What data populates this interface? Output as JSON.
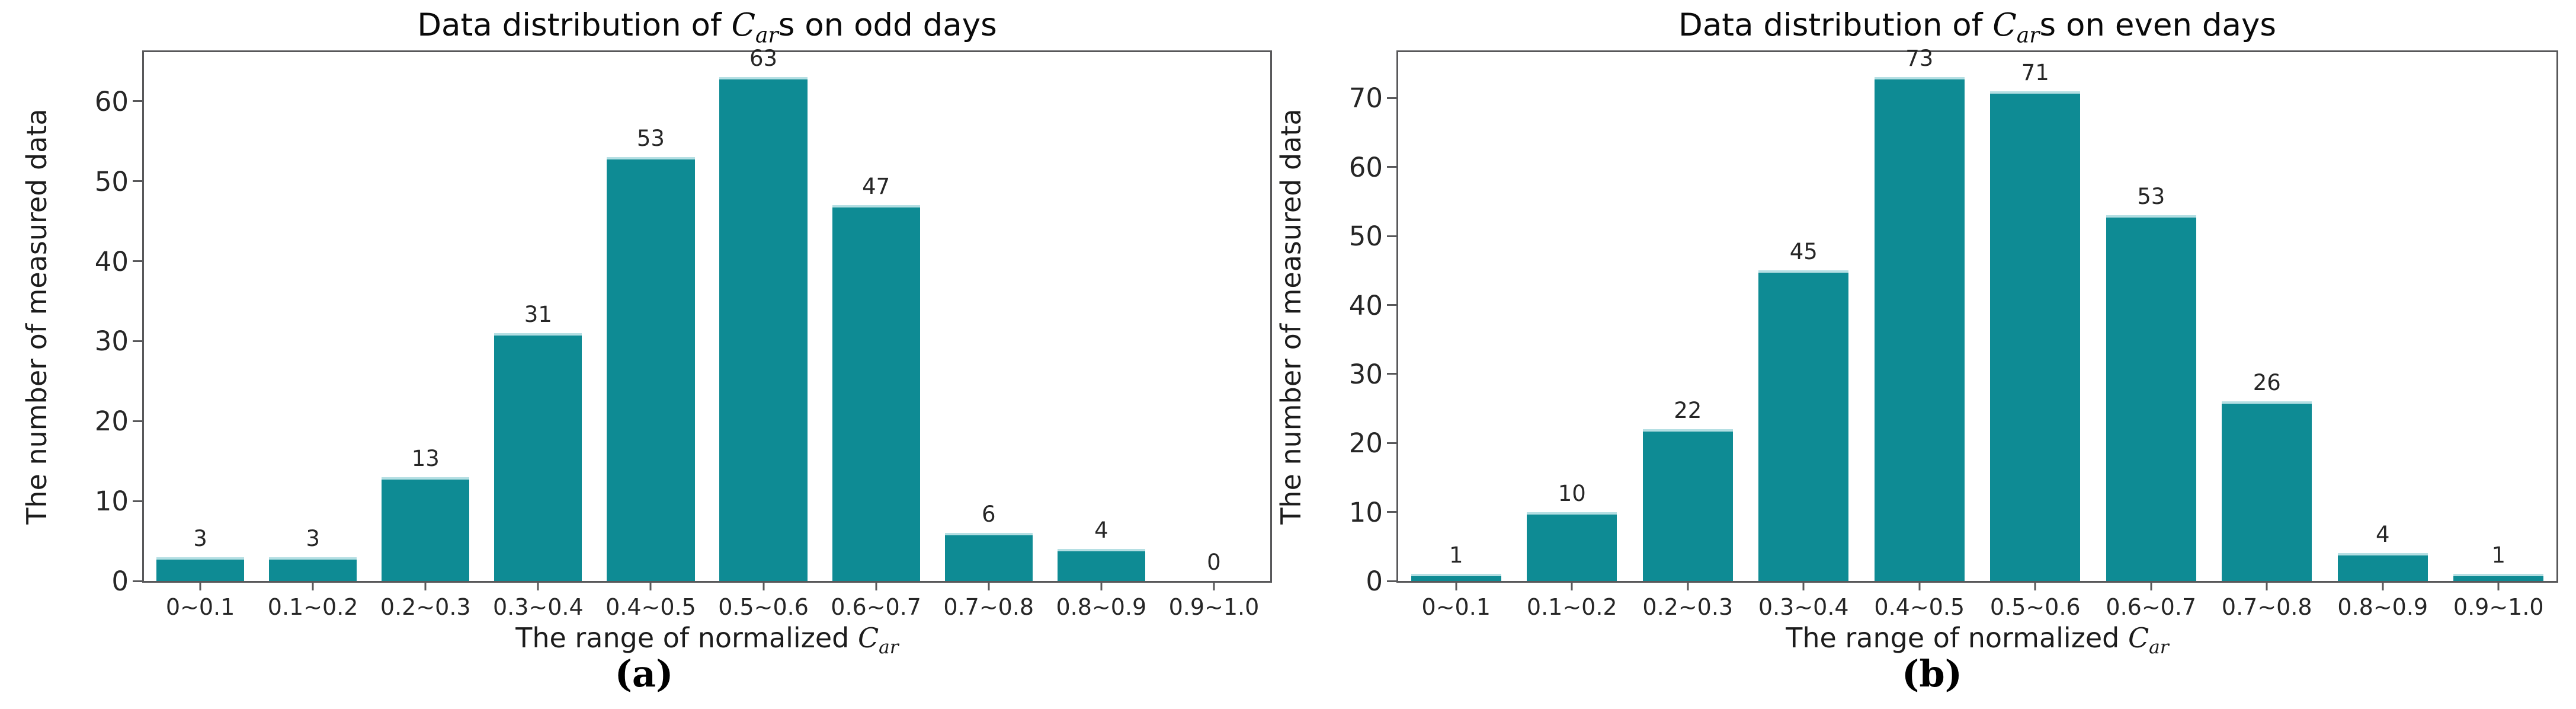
{
  "page": {
    "background": "#ffffff"
  },
  "colors": {
    "bar_fill": "#0e8b94",
    "bar_top_edge": "#b5dfe3",
    "spine": "#58585a",
    "text": "#262626"
  },
  "chart_data": [
    {
      "type": "bar",
      "title_prefix": "Data distribution of ",
      "title_var": "C",
      "title_var_sub": "ar",
      "title_suffix": "s on odd days",
      "ylabel": "The number of measured data",
      "xlabel_prefix": "The range of normalized ",
      "xlabel_var": "C",
      "xlabel_var_sub": "ar",
      "categories": [
        "0~0.1",
        "0.1~0.2",
        "0.2~0.3",
        "0.3~0.4",
        "0.4~0.5",
        "0.5~0.6",
        "0.6~0.7",
        "0.7~0.8",
        "0.8~0.9",
        "0.9~1.0"
      ],
      "values": [
        3,
        3,
        13,
        31,
        53,
        63,
        47,
        6,
        4,
        0
      ],
      "yticks": [
        0,
        10,
        20,
        30,
        40,
        50,
        60
      ],
      "ylim": [
        0,
        66.15
      ],
      "grid": false,
      "legend_position": "none",
      "caption": "(a)"
    },
    {
      "type": "bar",
      "title_prefix": "Data distribution of ",
      "title_var": "C",
      "title_var_sub": "ar",
      "title_suffix": "s on even days",
      "ylabel": "The number of measured data",
      "xlabel_prefix": "The range of normalized ",
      "xlabel_var": "C",
      "xlabel_var_sub": "ar",
      "categories": [
        "0~0.1",
        "0.1~0.2",
        "0.2~0.3",
        "0.3~0.4",
        "0.4~0.5",
        "0.5~0.6",
        "0.6~0.7",
        "0.7~0.8",
        "0.8~0.9",
        "0.9~1.0"
      ],
      "values": [
        1,
        10,
        22,
        45,
        73,
        71,
        53,
        26,
        4,
        1
      ],
      "yticks": [
        0,
        10,
        20,
        30,
        40,
        50,
        60,
        70
      ],
      "ylim": [
        0,
        76.65
      ],
      "grid": false,
      "legend_position": "none",
      "caption": "(b)"
    }
  ]
}
